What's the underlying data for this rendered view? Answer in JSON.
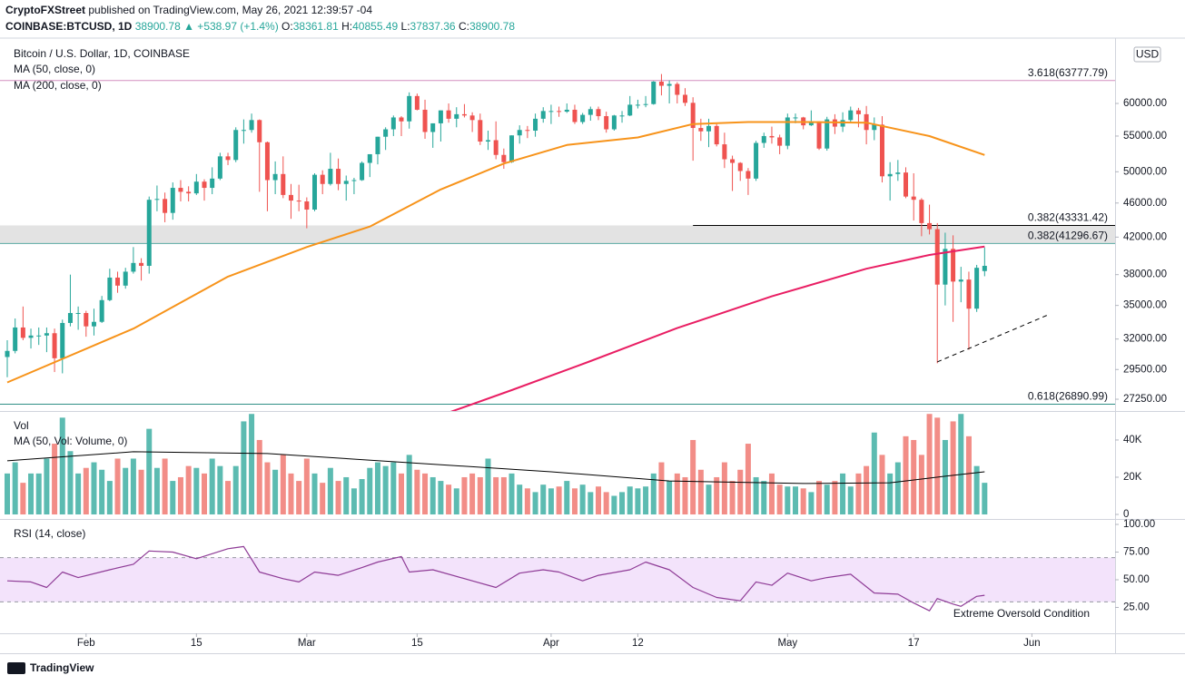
{
  "header": {
    "publisher": "CryptoFXStreet",
    "published": "published on TradingView.com, May 26, 2021 12:39:57 -04",
    "symbol": "COINBASE:BTCUSD, 1D",
    "last": "38900.78",
    "change": "▲ +538.97 (+1.4%)",
    "ohlc": [
      {
        "label": "O:",
        "value": "38361.81"
      },
      {
        "label": "H:",
        "value": "40855.49"
      },
      {
        "label": "L:",
        "value": "37837.36"
      },
      {
        "label": "C:",
        "value": "38900.78"
      }
    ],
    "logo": "TradingView"
  },
  "chart_data": [
    {
      "type": "candlestick",
      "title": "Bitcoin / U.S. Dollar, 1D, COINBASE",
      "axis_unit": "USD",
      "log_scale": true,
      "up_color": "#26a69a",
      "down_color": "#ef5350",
      "x": [
        "Jan 22",
        "Jan 23",
        "Jan 24",
        "Jan 25",
        "Jan 26",
        "Jan 27",
        "Jan 28",
        "Jan 29",
        "Jan 30",
        "Jan 31",
        "Feb 1",
        "Feb 2",
        "Feb 3",
        "Feb 4",
        "Feb 5",
        "Feb 6",
        "Feb 7",
        "Feb 8",
        "Feb 9",
        "Feb 10",
        "Feb 11",
        "Feb 12",
        "Feb 13",
        "Feb 14",
        "Feb 15",
        "Feb 16",
        "Feb 17",
        "Feb 18",
        "Feb 19",
        "Feb 20",
        "Feb 21",
        "Feb 22",
        "Feb 23",
        "Feb 24",
        "Feb 25",
        "Feb 26",
        "Feb 27",
        "Feb 28",
        "Mar 1",
        "Mar 2",
        "Mar 3",
        "Mar 4",
        "Mar 5",
        "Mar 6",
        "Mar 7",
        "Mar 8",
        "Mar 9",
        "Mar 10",
        "Mar 11",
        "Mar 12",
        "Mar 13",
        "Mar 14",
        "Mar 15",
        "Mar 16",
        "Mar 17",
        "Mar 18",
        "Mar 19",
        "Mar 20",
        "Mar 21",
        "Mar 22",
        "Mar 23",
        "Mar 24",
        "Mar 25",
        "Mar 26",
        "Mar 27",
        "Mar 28",
        "Mar 29",
        "Mar 30",
        "Mar 31",
        "Apr 1",
        "Apr 2",
        "Apr 3",
        "Apr 4",
        "Apr 5",
        "Apr 6",
        "Apr 7",
        "Apr 8",
        "Apr 9",
        "Apr 10",
        "Apr 11",
        "Apr 12",
        "Apr 13",
        "Apr 14",
        "Apr 15",
        "Apr 16",
        "Apr 17",
        "Apr 18",
        "Apr 19",
        "Apr 20",
        "Apr 21",
        "Apr 22",
        "Apr 23",
        "Apr 24",
        "Apr 25",
        "Apr 26",
        "Apr 27",
        "Apr 28",
        "Apr 29",
        "Apr 30",
        "May 1",
        "May 2",
        "May 3",
        "May 4",
        "May 5",
        "May 6",
        "May 7",
        "May 8",
        "May 9",
        "May 10",
        "May 11",
        "May 12",
        "May 13",
        "May 14",
        "May 15",
        "May 16",
        "May 17",
        "May 18",
        "May 19",
        "May 20",
        "May 21",
        "May 22",
        "May 23",
        "May 24",
        "May 25",
        "May 26"
      ],
      "open": [
        30500,
        31000,
        33000,
        32100,
        32300,
        32300,
        32500,
        30400,
        33400,
        34300,
        34300,
        33100,
        33500,
        35500,
        37700,
        36900,
        38300,
        39200,
        38900,
        46400,
        46500,
        44800,
        47900,
        47400,
        47200,
        48700,
        47900,
        49100,
        52100,
        51600,
        55900,
        55900,
        57400,
        54100,
        48900,
        49700,
        47000,
        46300,
        46200,
        45200,
        49600,
        48400,
        50400,
        48400,
        48800,
        48900,
        51200,
        52400,
        54900,
        56000,
        57800,
        57200,
        61200,
        59000,
        55600,
        56900,
        58900,
        57600,
        58300,
        58100,
        57400,
        54200,
        54400,
        52300,
        51300,
        55100,
        55900,
        55800,
        57600,
        58800,
        58800,
        58700,
        59000,
        57100,
        58200,
        59100,
        58000,
        56000,
        58100,
        58100,
        59800,
        59800,
        59900,
        63600,
        62900,
        63200,
        61400,
        60100,
        56200,
        55700,
        56500,
        53800,
        51700,
        51200,
        50100,
        49100,
        54000,
        55000,
        54800,
        53600,
        57800,
        57800,
        56600,
        57200,
        53200,
        57500,
        56400,
        57400,
        58900,
        58300,
        55900,
        56700,
        49400,
        49700,
        49900,
        46800,
        46400,
        43600,
        42900,
        37000,
        40700,
        37300,
        37500,
        34700,
        38361.81
      ],
      "high": [
        31900,
        33800,
        34900,
        32900,
        33000,
        33000,
        32900,
        33700,
        38000,
        34900,
        34500,
        34700,
        35900,
        38600,
        38300,
        38700,
        40900,
        39700,
        46800,
        48200,
        47300,
        48600,
        48900,
        48100,
        49700,
        49000,
        50600,
        52600,
        52600,
        56300,
        57500,
        58400,
        57500,
        54200,
        51400,
        52100,
        48400,
        48300,
        46700,
        49800,
        50200,
        52600,
        51800,
        49500,
        49200,
        51400,
        52400,
        54900,
        56300,
        58100,
        58000,
        61800,
        61600,
        60600,
        56900,
        58900,
        60000,
        59400,
        59900,
        58600,
        58400,
        55800,
        57200,
        53200,
        55100,
        56600,
        56500,
        58400,
        59400,
        59800,
        59500,
        60000,
        59800,
        58500,
        59500,
        59500,
        58700,
        58200,
        58800,
        61200,
        60600,
        61200,
        63700,
        64900,
        63800,
        63500,
        62500,
        61000,
        57600,
        57600,
        56800,
        55500,
        52200,
        51300,
        50500,
        54300,
        55500,
        56400,
        55200,
        58400,
        58400,
        57900,
        58900,
        57200,
        57900,
        58300,
        58600,
        59500,
        59300,
        59600,
        57800,
        58000,
        51300,
        51600,
        50600,
        49800,
        46600,
        45800,
        43600,
        42500,
        42200,
        38800,
        38300,
        39000,
        40855.49
      ],
      "low": [
        28900,
        30800,
        31900,
        31200,
        31500,
        30900,
        29300,
        29200,
        33100,
        32800,
        32200,
        32300,
        33400,
        35400,
        36200,
        36600,
        38100,
        37400,
        38100,
        45000,
        43700,
        44000,
        46200,
        46200,
        47000,
        46300,
        47100,
        48900,
        50900,
        51300,
        53900,
        55500,
        47400,
        45000,
        47100,
        46600,
        44100,
        45000,
        43000,
        45000,
        47100,
        48200,
        47600,
        46300,
        47100,
        48800,
        49300,
        51000,
        53000,
        55000,
        55000,
        56100,
        58900,
        54600,
        53300,
        54200,
        57000,
        56300,
        57800,
        55600,
        53700,
        53000,
        51700,
        50400,
        51200,
        53900,
        54700,
        54900,
        57000,
        56800,
        57900,
        58500,
        56800,
        56800,
        57300,
        57400,
        55500,
        55800,
        57000,
        58000,
        59200,
        59400,
        59800,
        61300,
        60000,
        60000,
        59600,
        51500,
        54300,
        53400,
        53500,
        50500,
        47500,
        48800,
        47000,
        48800,
        53300,
        53900,
        52400,
        53100,
        56900,
        56000,
        56500,
        53000,
        52900,
        55300,
        55600,
        56900,
        56300,
        53800,
        54400,
        48600,
        46300,
        48800,
        46600,
        43900,
        42100,
        42300,
        30000,
        35000,
        33500,
        35300,
        31100,
        34400,
        37837.36
      ],
      "close": [
        31000,
        33000,
        32100,
        32300,
        32300,
        32500,
        30400,
        33400,
        34300,
        34300,
        33100,
        33500,
        35500,
        37700,
        36900,
        38300,
        39200,
        38900,
        46400,
        46500,
        44800,
        47900,
        47400,
        47200,
        48700,
        47900,
        49100,
        52100,
        51600,
        55900,
        55900,
        57400,
        54100,
        48900,
        49700,
        47000,
        46300,
        46200,
        45200,
        49600,
        48400,
        50400,
        48400,
        48800,
        48900,
        51200,
        52400,
        54900,
        56000,
        57800,
        57200,
        61200,
        59000,
        55600,
        56900,
        58900,
        57600,
        58300,
        58100,
        57400,
        54200,
        54400,
        52300,
        51300,
        55100,
        55900,
        55800,
        57600,
        58800,
        58800,
        58700,
        59000,
        57100,
        58200,
        59100,
        58000,
        56000,
        58100,
        58100,
        59800,
        59800,
        59900,
        63600,
        62900,
        63200,
        61400,
        60100,
        56200,
        55700,
        56500,
        53800,
        51700,
        51200,
        50100,
        49100,
        54000,
        55000,
        54800,
        53600,
        57800,
        57800,
        56600,
        57200,
        53200,
        57500,
        56400,
        57400,
        58900,
        58300,
        55900,
        56700,
        49400,
        49700,
        49900,
        46800,
        46400,
        43600,
        42900,
        37000,
        40700,
        37300,
        37500,
        34700,
        38700,
        38900.78
      ],
      "ylim": [
        26280,
        70400
      ],
      "yticks": [
        {
          "value": 27250,
          "label": "27250.00"
        },
        {
          "value": 29500,
          "label": "29500.00"
        },
        {
          "value": 32000,
          "label": "32000.00"
        },
        {
          "value": 35000,
          "label": "35000.00"
        },
        {
          "value": 38000,
          "label": "38000.00"
        },
        {
          "value": 42000,
          "label": "42000.00"
        },
        {
          "value": 46000,
          "label": "46000.00"
        },
        {
          "value": 50000,
          "label": "50000.00"
        },
        {
          "value": 55000,
          "label": "55000.00"
        },
        {
          "value": 60000,
          "label": "60000.00"
        }
      ],
      "xticks": [
        {
          "value": "Feb 1",
          "label": "Feb"
        },
        {
          "value": "Feb 15",
          "label": "15"
        },
        {
          "value": "Mar 1",
          "label": "Mar"
        },
        {
          "value": "Mar 15",
          "label": "15"
        },
        {
          "value": "Apr 1",
          "label": "Apr"
        },
        {
          "value": "Apr 12",
          "label": "12"
        },
        {
          "value": "May 1",
          "label": "May"
        },
        {
          "value": "May 17",
          "label": "17"
        },
        {
          "value": "Jun 1",
          "label": "Jun"
        }
      ],
      "lines": [
        {
          "name": "MA (50, close, 0)",
          "color": "#f7931a",
          "x": [
            "Jan 22",
            "Feb 7",
            "Feb 19",
            "Mar 1",
            "Mar 9",
            "Mar 18",
            "Mar 26",
            "Apr 3",
            "Apr 12",
            "Apr 19",
            "Apr 26",
            "May 3",
            "May 11",
            "May 19",
            "May 26"
          ],
          "values": [
            28500,
            32900,
            37800,
            40900,
            43200,
            47700,
            51100,
            53700,
            54800,
            56800,
            57100,
            57100,
            57000,
            55000,
            52300
          ]
        },
        {
          "name": "MA (200, close, 0)",
          "color": "#e91e63",
          "x": [
            "Mar 19",
            "Mar 27",
            "Apr 6",
            "Apr 17",
            "Apr 29",
            "May 11",
            "May 19",
            "May 26"
          ],
          "values": [
            26300,
            27920,
            30170,
            32950,
            35860,
            38600,
            40050,
            40950
          ]
        }
      ],
      "levels": [
        {
          "label": "3.618(63777.79)",
          "value": 63777.79,
          "color": "#d48fbf"
        },
        {
          "label": "0.382(43331.42)",
          "value": 43331.42,
          "color": "#000000",
          "from": "Apr 19"
        },
        {
          "label": "0.382(41296.67)",
          "value": 41296.67,
          "color": "#5aa9a3"
        },
        {
          "label": "0.618(26890.99)",
          "value": 26890.99,
          "color": "#2f8f86"
        }
      ],
      "zone_color": "#dcdcdc",
      "trendline": {
        "x": [
          "May 20",
          "Jun 3"
        ],
        "values": [
          30100,
          34120
        ],
        "color": "#000000"
      }
    },
    {
      "type": "bar",
      "title": "Vol",
      "up_color": "#5cbbb1",
      "down_color": "#f28d87",
      "values": [
        22000,
        28000,
        17000,
        22000,
        22000,
        30000,
        38000,
        52000,
        34000,
        22000,
        25000,
        28000,
        24000,
        18000,
        30000,
        25000,
        30000,
        24000,
        46000,
        25000,
        30000,
        18000,
        20000,
        26000,
        25000,
        22000,
        30000,
        26000,
        18000,
        26000,
        50000,
        54000,
        40000,
        28000,
        24000,
        32000,
        22000,
        18000,
        30000,
        22000,
        17000,
        25000,
        18000,
        20000,
        14000,
        19000,
        25000,
        28000,
        26000,
        28000,
        22000,
        32000,
        24000,
        22000,
        20000,
        18000,
        16000,
        14000,
        20000,
        22000,
        20000,
        30000,
        20000,
        20000,
        22000,
        16000,
        14000,
        12000,
        16000,
        14000,
        15000,
        18000,
        14000,
        16000,
        12000,
        15000,
        12000,
        10000,
        12000,
        15000,
        14000,
        15000,
        22000,
        28000,
        18000,
        22000,
        20000,
        40000,
        24000,
        16000,
        20000,
        28000,
        18000,
        24000,
        38000,
        20000,
        18000,
        22000,
        16000,
        15000,
        15000,
        14000,
        12000,
        18000,
        16000,
        18000,
        22000,
        15000,
        22000,
        26000,
        44000,
        32000,
        22000,
        28000,
        42000,
        40000,
        32000,
        54000,
        52000,
        40000,
        50000,
        54000,
        42000,
        26000,
        17000
      ],
      "ylim": [
        0,
        54600
      ],
      "yticks": [
        0,
        {
          "value": 20000,
          "label": "20K"
        },
        {
          "value": 40000,
          "label": "40K"
        }
      ],
      "ma": {
        "name": "MA (50, Vol: Volume, 0)",
        "color": "#000000",
        "x": [
          "Jan 22",
          "Feb 7",
          "Feb 24",
          "Mar 14",
          "Apr 1",
          "Apr 16",
          "May 3",
          "May 14",
          "May 21",
          "May 26"
        ],
        "values": [
          28800,
          33700,
          32700,
          27800,
          22900,
          18000,
          16600,
          17000,
          20500,
          22900
        ]
      }
    },
    {
      "type": "line",
      "title": "RSI (14, close)",
      "color": "#8e3b96",
      "band_color": "#f3e3fb",
      "bands": [
        30,
        70
      ],
      "x": [
        "Jan 22",
        "Jan 25",
        "Jan 27",
        "Jan 29",
        "Jan 31",
        "Feb 4",
        "Feb 7",
        "Feb 9",
        "Feb 12",
        "Feb 15",
        "Feb 19",
        "Feb 21",
        "Feb 23",
        "Feb 26",
        "Feb 28",
        "Mar 2",
        "Mar 5",
        "Mar 8",
        "Mar 10",
        "Mar 13",
        "Mar 14",
        "Mar 17",
        "Mar 22",
        "Mar 25",
        "Mar 28",
        "Mar 31",
        "Apr 2",
        "Apr 5",
        "Apr 7",
        "Apr 11",
        "Apr 13",
        "Apr 16",
        "Apr 19",
        "Apr 22",
        "Apr 25",
        "Apr 27",
        "Apr 29",
        "May 1",
        "May 4",
        "May 6",
        "May 9",
        "May 12",
        "May 15",
        "May 17",
        "May 19",
        "May 20",
        "May 22",
        "May 23",
        "May 25",
        "May 26"
      ],
      "values": [
        49,
        48,
        43,
        57,
        52,
        59,
        64,
        76,
        75,
        69,
        78,
        80,
        57,
        51,
        48,
        57,
        54,
        61,
        66,
        71,
        57,
        59,
        49,
        43,
        56,
        59,
        57,
        49,
        54,
        59,
        66,
        59,
        43,
        34,
        31,
        48,
        45,
        56,
        49,
        52,
        55,
        38,
        37,
        29,
        22,
        33,
        28,
        26,
        35,
        36
      ],
      "ylim": [
        0,
        100
      ],
      "yticks": [
        {
          "value": 25,
          "label": "25.00"
        },
        {
          "value": 50,
          "label": "50.00"
        },
        {
          "value": 75,
          "label": "75.00"
        },
        {
          "value": 100,
          "label": "100.00"
        }
      ],
      "annotation": "Extreme Oversold Condition"
    }
  ]
}
